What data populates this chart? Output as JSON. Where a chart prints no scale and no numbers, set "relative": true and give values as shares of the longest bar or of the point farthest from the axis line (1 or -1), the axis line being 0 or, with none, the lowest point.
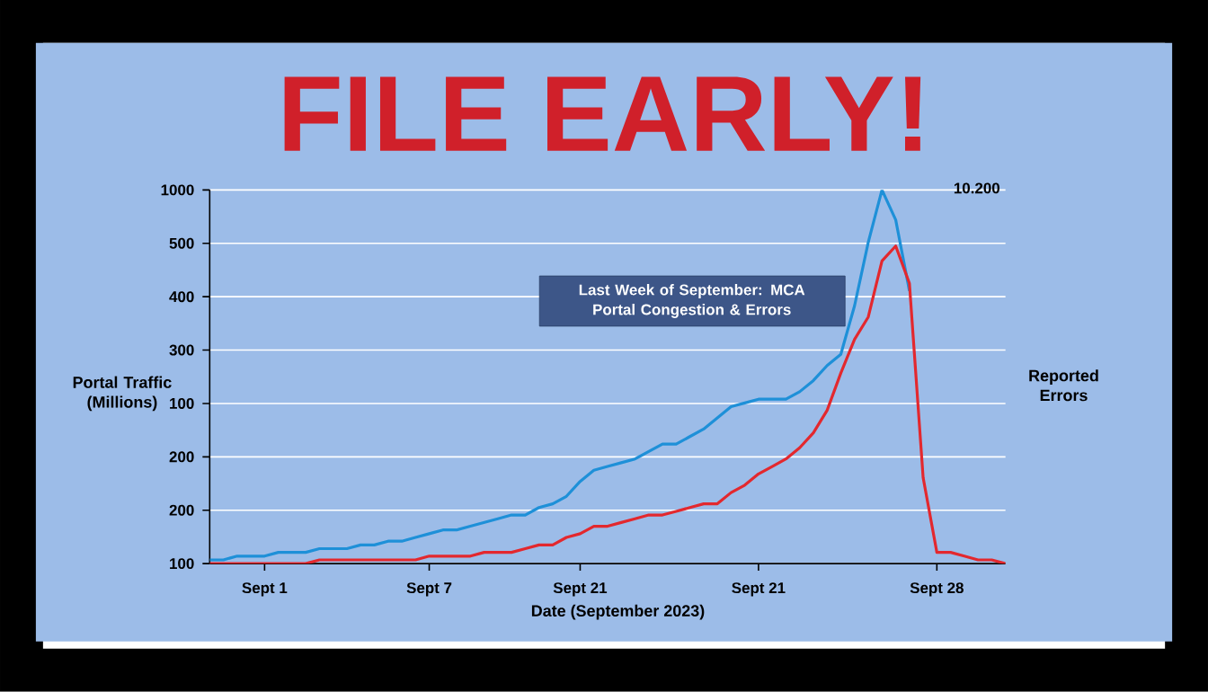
{
  "chart_data": {
    "type": "line",
    "title": "FILE EARLY!",
    "xlabel": "Date (September 2023)",
    "ylabel": "Portal Traffic (Millions)",
    "y2label": "Reported Errors",
    "annotations": [
      "Last Week of September: MCA Portal Congestion & Errors",
      "10.200",
      "100",
      "200",
      "200",
      "100",
      "300",
      "400",
      "500",
      "1000"
    ],
    "categories": [
      null,
      null,
      null,
      null,
      "Sept 1",
      null,
      null,
      null,
      null,
      null,
      null,
      null,
      null,
      null,
      null,
      null,
      "Sept 7",
      null,
      null,
      null,
      null,
      null,
      null,
      null,
      null,
      null,
      null,
      "Sept 21",
      null,
      null,
      null,
      null,
      null,
      null,
      null,
      null,
      null,
      null,
      null,
      null,
      "Sept 21",
      null,
      null,
      null,
      null,
      null,
      null,
      null,
      null,
      null,
      null,
      null,
      null,
      "Sept 28",
      null,
      null,
      null,
      null,
      null
    ],
    "relative": true,
    "grid": "y",
    "marker": "none",
    "line_style": "solid",
    "series": [
      {
        "color": "#1e90d8",
        "values": [
          0.01,
          0.01,
          0.02,
          0.02,
          0.02,
          0.03,
          0.03,
          0.03,
          0.04,
          0.04,
          0.04,
          0.05,
          0.05,
          0.06,
          0.06,
          0.07,
          0.08,
          0.09,
          0.09,
          0.1,
          0.11,
          0.12,
          0.13,
          0.13,
          0.15,
          0.16,
          0.18,
          0.22,
          0.25,
          0.26,
          0.27,
          0.28,
          0.3,
          0.32,
          0.32,
          0.34,
          0.36,
          0.39,
          0.42,
          0.43,
          0.44,
          0.44,
          0.44,
          0.46,
          0.49,
          0.53,
          0.56,
          0.69,
          0.86,
          1,
          0.92,
          0.73,
          null,
          null,
          null,
          null,
          null,
          null,
          null
        ]
      },
      {
        "color": "#e3282e",
        "values": [
          0,
          0,
          0,
          0,
          0,
          0,
          0,
          0,
          0.01,
          0.01,
          0.01,
          0.01,
          0.01,
          0.01,
          0.01,
          0.01,
          0.02,
          0.02,
          0.02,
          0.02,
          0.03,
          0.03,
          0.03,
          0.04,
          0.05,
          0.05,
          0.07,
          0.08,
          0.1,
          0.1,
          0.11,
          0.12,
          0.13,
          0.13,
          0.14,
          0.15,
          0.16,
          0.16,
          0.19,
          0.21,
          0.24,
          0.26,
          0.28,
          0.31,
          0.35,
          0.41,
          0.51,
          0.6,
          0.66,
          0.81,
          0.85,
          0.75,
          0.23,
          0.03,
          0.03,
          0.02,
          0.01,
          0.01,
          0
        ]
      }
    ]
  }
}
